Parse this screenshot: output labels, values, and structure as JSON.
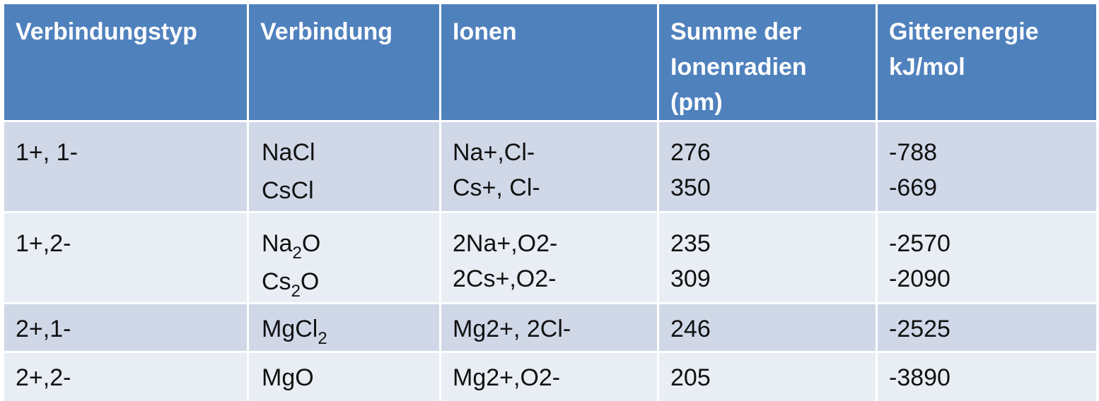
{
  "table": {
    "headers": [
      "Verbindungstyp",
      "Verbindung",
      "Ionen",
      "Summe der Ionenradien (pm)",
      "Gitterenergie kJ/mol"
    ],
    "header_lines": [
      [
        "Verbindungstyp"
      ],
      [
        "Verbindung"
      ],
      [
        "Ionen"
      ],
      [
        "Summe der",
        "Ionenradien",
        "(pm)"
      ],
      [
        "Gitterenergie",
        "kJ/mol"
      ]
    ],
    "rows": [
      {
        "type": "1+, 1-",
        "compounds": [
          {
            "base": "NaCl",
            "sub": "",
            "tail": ""
          },
          {
            "base": "CsCl",
            "sub": "",
            "tail": ""
          }
        ],
        "ions": [
          "Na+,Cl-",
          "Cs+, Cl-"
        ],
        "radii": [
          "276",
          "350"
        ],
        "energy": [
          "-788",
          "-669"
        ]
      },
      {
        "type": "1+,2-",
        "compounds": [
          {
            "base": "Na",
            "sub": "2",
            "tail": "O"
          },
          {
            "base": "Cs",
            "sub": "2",
            "tail": "O"
          }
        ],
        "ions": [
          "2Na+,O2-",
          "2Cs+,O2-"
        ],
        "radii": [
          "235",
          "309"
        ],
        "energy": [
          "-2570",
          "-2090"
        ]
      },
      {
        "type": "2+,1-",
        "compounds": [
          {
            "base": "MgCl",
            "sub": "2",
            "tail": ""
          }
        ],
        "ions": [
          "Mg2+, 2Cl-"
        ],
        "radii": [
          "246"
        ],
        "energy": [
          "-2525"
        ]
      },
      {
        "type": "2+,2-",
        "compounds": [
          {
            "base": "MgO",
            "sub": "",
            "tail": ""
          }
        ],
        "ions": [
          "Mg2+,O2-"
        ],
        "radii": [
          "205"
        ],
        "energy": [
          "-3890"
        ]
      }
    ],
    "colors": {
      "header_bg": "#4f81bd",
      "header_text": "#ffffff",
      "row_band_dark": "#d0d8e8",
      "row_band_light": "#e9edf4"
    }
  }
}
